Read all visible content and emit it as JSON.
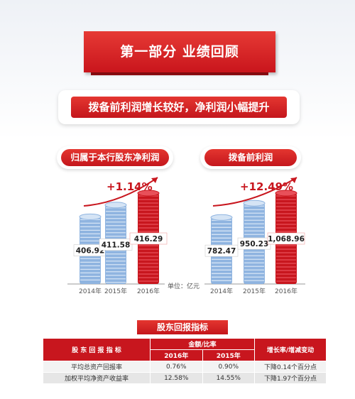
{
  "header": {
    "title": "第一部分   业绩回顾"
  },
  "subtitle": "拨备前利润增长较好，净利润小幅提升",
  "unit_label": "单位：亿元",
  "colors": {
    "red": "#c8161e",
    "blue": "#7da7d9"
  },
  "chart_data": [
    {
      "type": "bar",
      "title": "归属于本行股东净利润",
      "categories": [
        "2014年",
        "2015年",
        "2016年"
      ],
      "values": [
        406.92,
        411.58,
        416.29
      ],
      "value_labels": [
        "406.92",
        "411.58",
        "416.29"
      ],
      "growth": "+1.14%",
      "unit": "亿元"
    },
    {
      "type": "bar",
      "title": "拨备前利润",
      "categories": [
        "2014年",
        "2015年",
        "2016年"
      ],
      "values": [
        782.47,
        950.23,
        1068.96
      ],
      "value_labels": [
        "782.47",
        "950.23",
        "1,068.96"
      ],
      "growth": "+12.49%",
      "unit": "亿元"
    }
  ],
  "table": {
    "title": "股东回报指标",
    "col_indicator": "股 东 回 报 指 标",
    "col_amount": "金额/比率",
    "col_change": "增长率/增减变动",
    "year_2016": "2016年",
    "year_2015": "2015年",
    "rows": [
      {
        "name": "平均总资产回报率",
        "v2016": "0.76%",
        "v2015": "0.90%",
        "change": "下降0.14个百分点"
      },
      {
        "name": "加权平均净资产收益率",
        "v2016": "12.58%",
        "v2015": "14.55%",
        "change": "下降1.97个百分点"
      }
    ]
  }
}
